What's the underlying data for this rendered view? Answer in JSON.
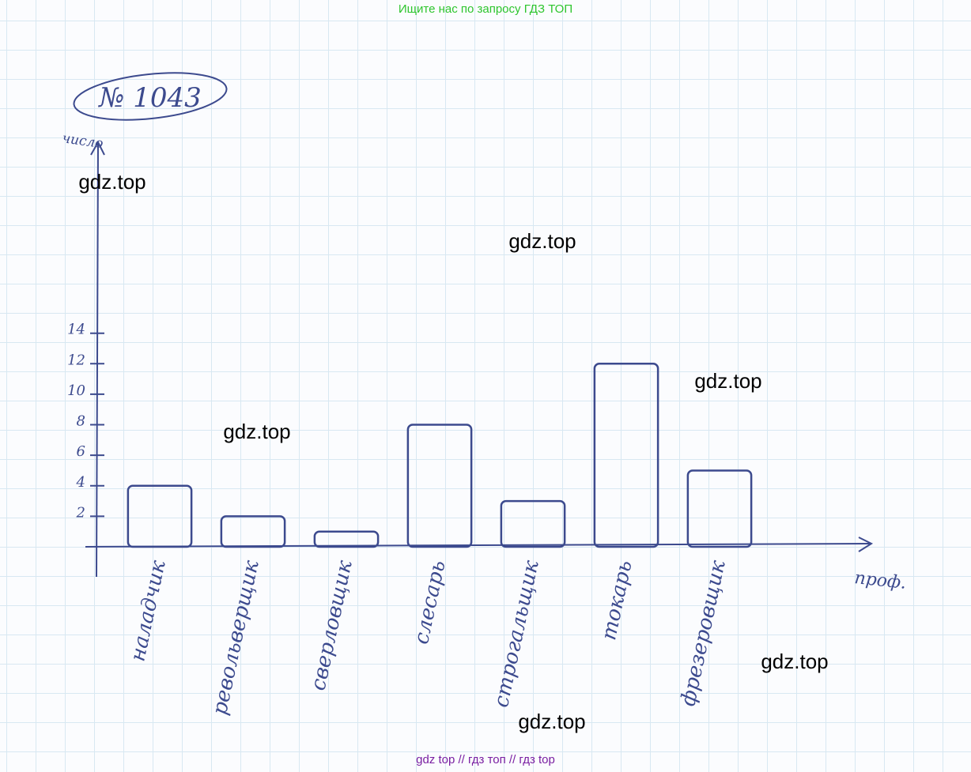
{
  "header": "Ищите нас по запросу ГДЗ ТОП",
  "footer": "gdz top  //  гдз топ  //  гдз top",
  "watermarks": [
    "gdz.top",
    "gdz.top",
    "gdz.top",
    "gdz.top",
    "gdz.top",
    "gdz.top"
  ],
  "chart_data": {
    "type": "bar",
    "title": "№ 1043",
    "y_label": "число",
    "x_label": "проф.",
    "categories": [
      "наладчик",
      "револьверщик",
      "сверловщик",
      "слесарь",
      "строгальщик",
      "токарь",
      "фрезеровщик"
    ],
    "values": [
      4,
      2,
      1,
      8,
      3,
      12,
      5
    ],
    "color": "#3c4a8e",
    "ylim": [
      0,
      26
    ],
    "yticks": [
      2,
      4,
      6,
      8,
      10,
      12,
      14
    ]
  }
}
